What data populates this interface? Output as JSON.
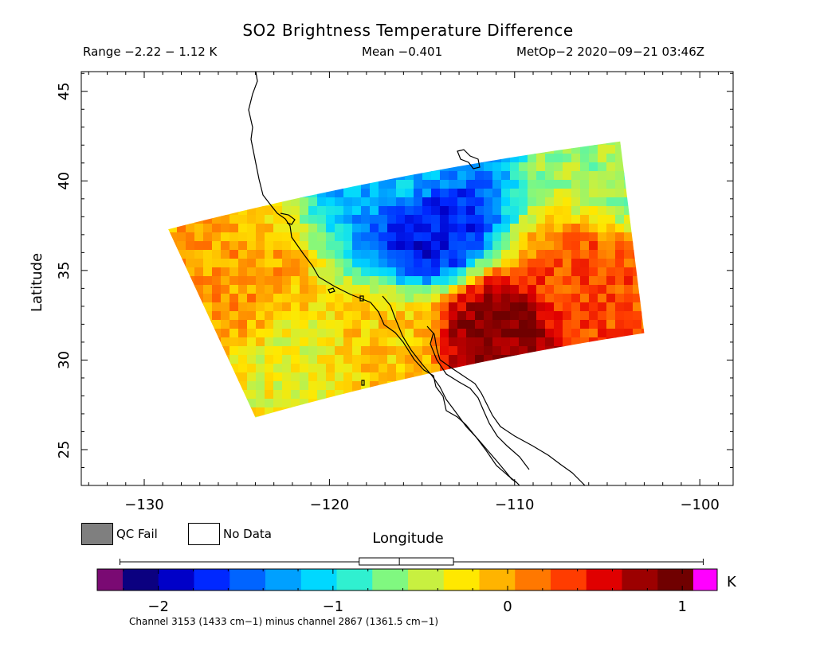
{
  "header": {
    "title": "SO2 Brightness Temperature Difference",
    "range": "Range −2.22 − 1.12 K",
    "mean": "Mean −0.401",
    "satellite_time": "MetOp−2 2020−09−21 03:46Z"
  },
  "legend": {
    "qc_fail": "QC Fail",
    "no_data": "No Data",
    "qc_fail_color": "#7f7f7f",
    "no_data_color": "#ffffff"
  },
  "colorbar": {
    "unit": "K",
    "ticks": [
      "−2",
      "−1",
      "0",
      "1"
    ],
    "under_color": "#7a0a73",
    "over_color": "#ff00ff",
    "colors": [
      "#0b0080",
      "#0000c8",
      "#0028ff",
      "#0064ff",
      "#00a0ff",
      "#00d8ff",
      "#30f0d0",
      "#80f880",
      "#c8f040",
      "#ffe800",
      "#ffb400",
      "#ff7800",
      "#ff3c00",
      "#e00000",
      "#9c0000",
      "#700000"
    ]
  },
  "footer": {
    "channel_note": "Channel 3153 (1433 cm−1) minus channel 2867 (1361.5 cm−1)"
  },
  "chart_data": {
    "type": "heatmap",
    "title": "SO2 Brightness Temperature Difference",
    "xlabel": "Longitude",
    "ylabel": "Latitude",
    "xlim": [
      -133.4,
      -98.2
    ],
    "ylim": [
      23.0,
      46.1
    ],
    "x_ticks": [
      -130,
      -120,
      -110,
      -100
    ],
    "y_ticks": [
      25,
      30,
      35,
      40,
      45
    ],
    "x_tick_labels": [
      "−130",
      "−120",
      "−110",
      "−100"
    ],
    "y_tick_labels": [
      "25",
      "30",
      "35",
      "40",
      "45"
    ],
    "value_range": [
      -2.22,
      1.12
    ],
    "mean": -0.401,
    "colorbar_range": [
      -2.35,
      1.2
    ],
    "swath_corners": {
      "top_left": [
        -128.7,
        37.3
      ],
      "top_right": [
        -104.3,
        42.2
      ],
      "bottom_right": [
        -103.0,
        31.5
      ],
      "bottom_left": [
        -124.0,
        26.8
      ]
    },
    "features": [
      {
        "name": "blue band",
        "lon": -114.5,
        "lat": 37.5,
        "value": -1.9
      },
      {
        "name": "north edge",
        "lon": -116.0,
        "lat": 40.5,
        "value": -1.2
      },
      {
        "name": "red core",
        "lon": -111.0,
        "lat": 31.5,
        "value": 1.0
      },
      {
        "name": "orange east",
        "lon": -106.0,
        "lat": 34.5,
        "value": 0.4
      },
      {
        "name": "green east",
        "lon": -104.3,
        "lat": 40.5,
        "value": -0.6
      },
      {
        "name": "orange west",
        "lon": -125.0,
        "lat": 34.0,
        "value": 0.1
      },
      {
        "name": "south west",
        "lon": -122.0,
        "lat": 29.5,
        "value": -0.3
      },
      {
        "name": "south central",
        "lon": -117.0,
        "lat": 30.5,
        "value": -0.1
      }
    ],
    "boxplot": {
      "whisker_low": -2.22,
      "q1": -0.85,
      "median": -0.62,
      "q3": -0.31,
      "whisker_high": 1.12
    }
  }
}
